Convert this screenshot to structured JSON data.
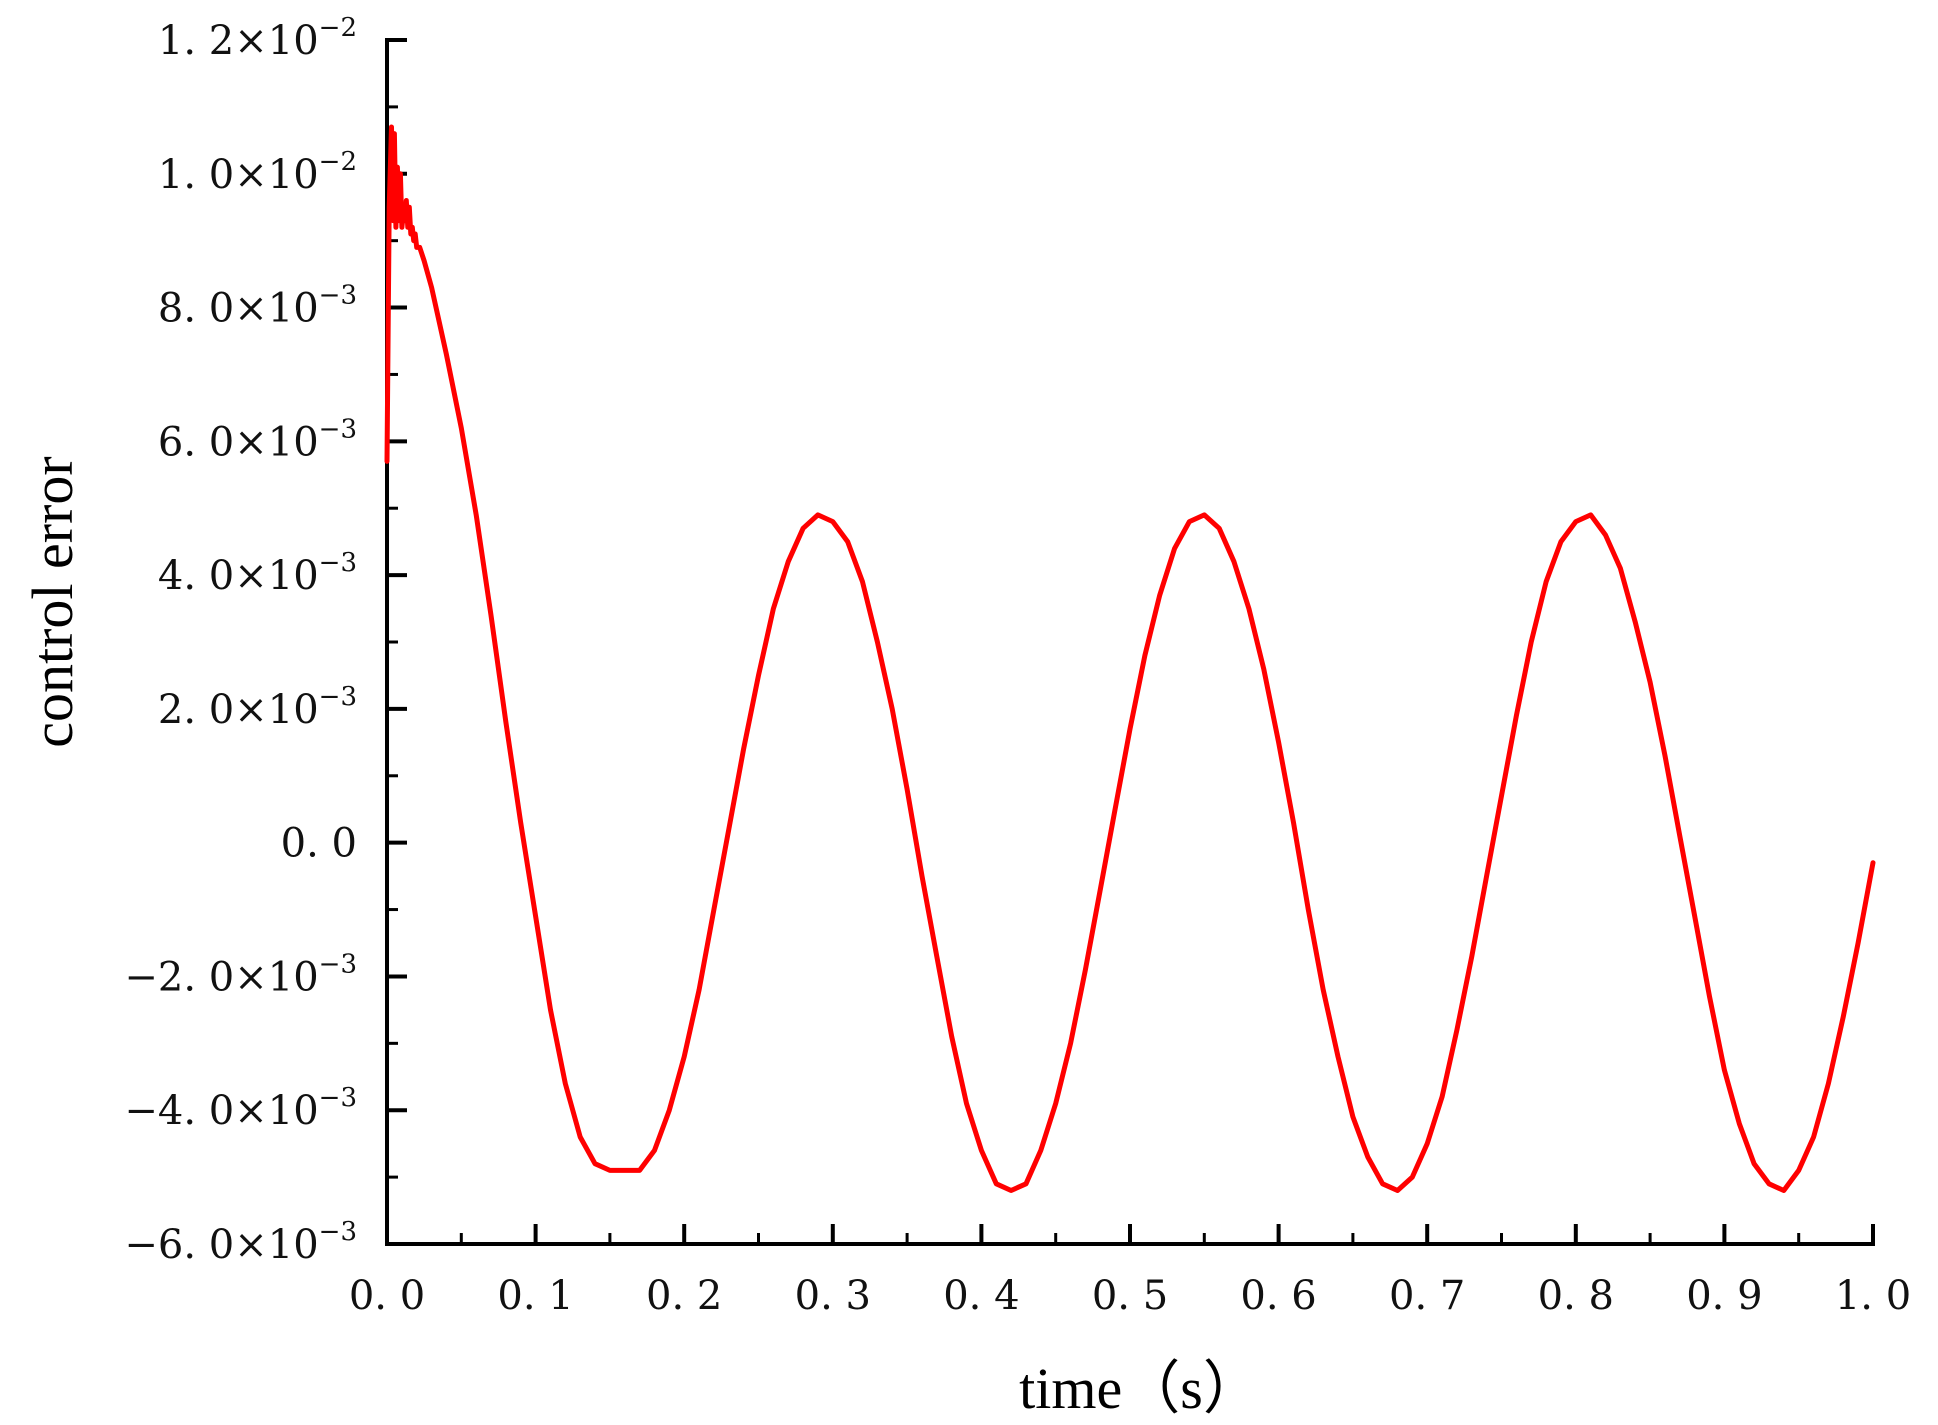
{
  "chart_data": {
    "type": "line",
    "title": "",
    "xlabel": "time（s）",
    "ylabel": "control error",
    "xlim": [
      0.0,
      1.0
    ],
    "ylim": [
      -0.006,
      0.012
    ],
    "x_major_ticks": [
      0.0,
      0.1,
      0.2,
      0.3,
      0.4,
      0.5,
      0.6,
      0.7,
      0.8,
      0.9,
      1.0
    ],
    "x_minor_ticks": [
      0.05,
      0.15,
      0.25,
      0.35,
      0.45,
      0.55,
      0.65,
      0.75,
      0.85,
      0.95
    ],
    "x_tick_labels": [
      "0. 0",
      "0. 1",
      "0. 2",
      "0. 3",
      "0. 4",
      "0. 5",
      "0. 6",
      "0. 7",
      "0. 8",
      "0. 9",
      "1. 0"
    ],
    "y_major_ticks": [
      -0.006,
      -0.004,
      -0.002,
      0.0,
      0.002,
      0.004,
      0.006,
      0.008,
      0.01,
      0.012
    ],
    "y_minor_ticks": [
      -0.005,
      -0.003,
      -0.001,
      0.001,
      0.003,
      0.005,
      0.007,
      0.009,
      0.011
    ],
    "y_tick_labels": [
      {
        "mantissa": "−6. 0",
        "times": "×",
        "base": "10",
        "exp": "−3"
      },
      {
        "mantissa": "−4. 0",
        "times": "×",
        "base": "10",
        "exp": "−3"
      },
      {
        "mantissa": "−2. 0",
        "times": "×",
        "base": "10",
        "exp": "−3"
      },
      {
        "mantissa": "0. 0",
        "times": "",
        "base": "",
        "exp": ""
      },
      {
        "mantissa": "2. 0",
        "times": "×",
        "base": "10",
        "exp": "−3"
      },
      {
        "mantissa": "4. 0",
        "times": "×",
        "base": "10",
        "exp": "−3"
      },
      {
        "mantissa": "6. 0",
        "times": "×",
        "base": "10",
        "exp": "−3"
      },
      {
        "mantissa": "8. 0",
        "times": "×",
        "base": "10",
        "exp": "−3"
      },
      {
        "mantissa": "1. 0",
        "times": "×",
        "base": "10",
        "exp": "−2"
      },
      {
        "mantissa": "1. 2",
        "times": "×",
        "base": "10",
        "exp": "−2"
      }
    ],
    "grid": false,
    "legend": "none",
    "series": [
      {
        "color": "#ff0000",
        "x": [
          0.0,
          0.0015,
          0.003,
          0.004,
          0.005,
          0.006,
          0.007,
          0.008,
          0.009,
          0.01,
          0.011,
          0.012,
          0.013,
          0.014,
          0.015,
          0.016,
          0.017,
          0.018,
          0.019,
          0.02,
          0.022,
          0.025,
          0.03,
          0.035,
          0.04,
          0.05,
          0.06,
          0.07,
          0.08,
          0.09,
          0.1,
          0.11,
          0.12,
          0.13,
          0.14,
          0.15,
          0.16,
          0.17,
          0.18,
          0.19,
          0.2,
          0.21,
          0.22,
          0.23,
          0.24,
          0.25,
          0.26,
          0.27,
          0.28,
          0.29,
          0.3,
          0.31,
          0.32,
          0.33,
          0.34,
          0.35,
          0.36,
          0.37,
          0.38,
          0.39,
          0.4,
          0.41,
          0.42,
          0.43,
          0.44,
          0.45,
          0.46,
          0.47,
          0.48,
          0.49,
          0.5,
          0.51,
          0.52,
          0.53,
          0.54,
          0.55,
          0.56,
          0.57,
          0.58,
          0.59,
          0.6,
          0.61,
          0.62,
          0.63,
          0.64,
          0.65,
          0.66,
          0.67,
          0.68,
          0.69,
          0.7,
          0.71,
          0.72,
          0.73,
          0.74,
          0.75,
          0.76,
          0.77,
          0.78,
          0.79,
          0.8,
          0.81,
          0.82,
          0.83,
          0.84,
          0.85,
          0.86,
          0.87,
          0.88,
          0.89,
          0.9,
          0.91,
          0.92,
          0.93,
          0.94,
          0.95,
          0.96,
          0.97,
          0.98,
          0.99,
          1.0
        ],
        "y": [
          0.0057,
          0.0095,
          0.0107,
          0.0093,
          0.0106,
          0.0092,
          0.0101,
          0.0093,
          0.01,
          0.0092,
          0.0094,
          0.0093,
          0.0096,
          0.0092,
          0.0095,
          0.0091,
          0.0092,
          0.009,
          0.0091,
          0.0089,
          0.0089,
          0.0087,
          0.0083,
          0.0078,
          0.0073,
          0.0062,
          0.0049,
          0.0034,
          0.0018,
          0.0003,
          -0.0011,
          -0.0025,
          -0.0036,
          -0.0044,
          -0.0048,
          -0.0049,
          -0.0049,
          -0.0049,
          -0.0046,
          -0.004,
          -0.0032,
          -0.0022,
          -0.001,
          0.0002,
          0.0014,
          0.0025,
          0.0035,
          0.0042,
          0.0047,
          0.0049,
          0.0048,
          0.0045,
          0.0039,
          0.003,
          0.002,
          0.0008,
          -0.0005,
          -0.0017,
          -0.0029,
          -0.0039,
          -0.0046,
          -0.0051,
          -0.0052,
          -0.0051,
          -0.0046,
          -0.0039,
          -0.003,
          -0.0019,
          -0.0007,
          0.0005,
          0.0017,
          0.0028,
          0.0037,
          0.0044,
          0.0048,
          0.0049,
          0.0047,
          0.0042,
          0.0035,
          0.0026,
          0.0015,
          0.0003,
          -0.001,
          -0.0022,
          -0.0032,
          -0.0041,
          -0.0047,
          -0.0051,
          -0.0052,
          -0.005,
          -0.0045,
          -0.0038,
          -0.0028,
          -0.0017,
          -0.0005,
          0.0007,
          0.0019,
          0.003,
          0.0039,
          0.0045,
          0.0048,
          0.0049,
          0.0046,
          0.0041,
          0.0033,
          0.0024,
          0.0013,
          0.0001,
          -0.0011,
          -0.0023,
          -0.0034,
          -0.0042,
          -0.0048,
          -0.0051,
          -0.0052,
          -0.0049,
          -0.0044,
          -0.0036,
          -0.0026,
          -0.0015,
          -0.0003
        ]
      }
    ]
  }
}
